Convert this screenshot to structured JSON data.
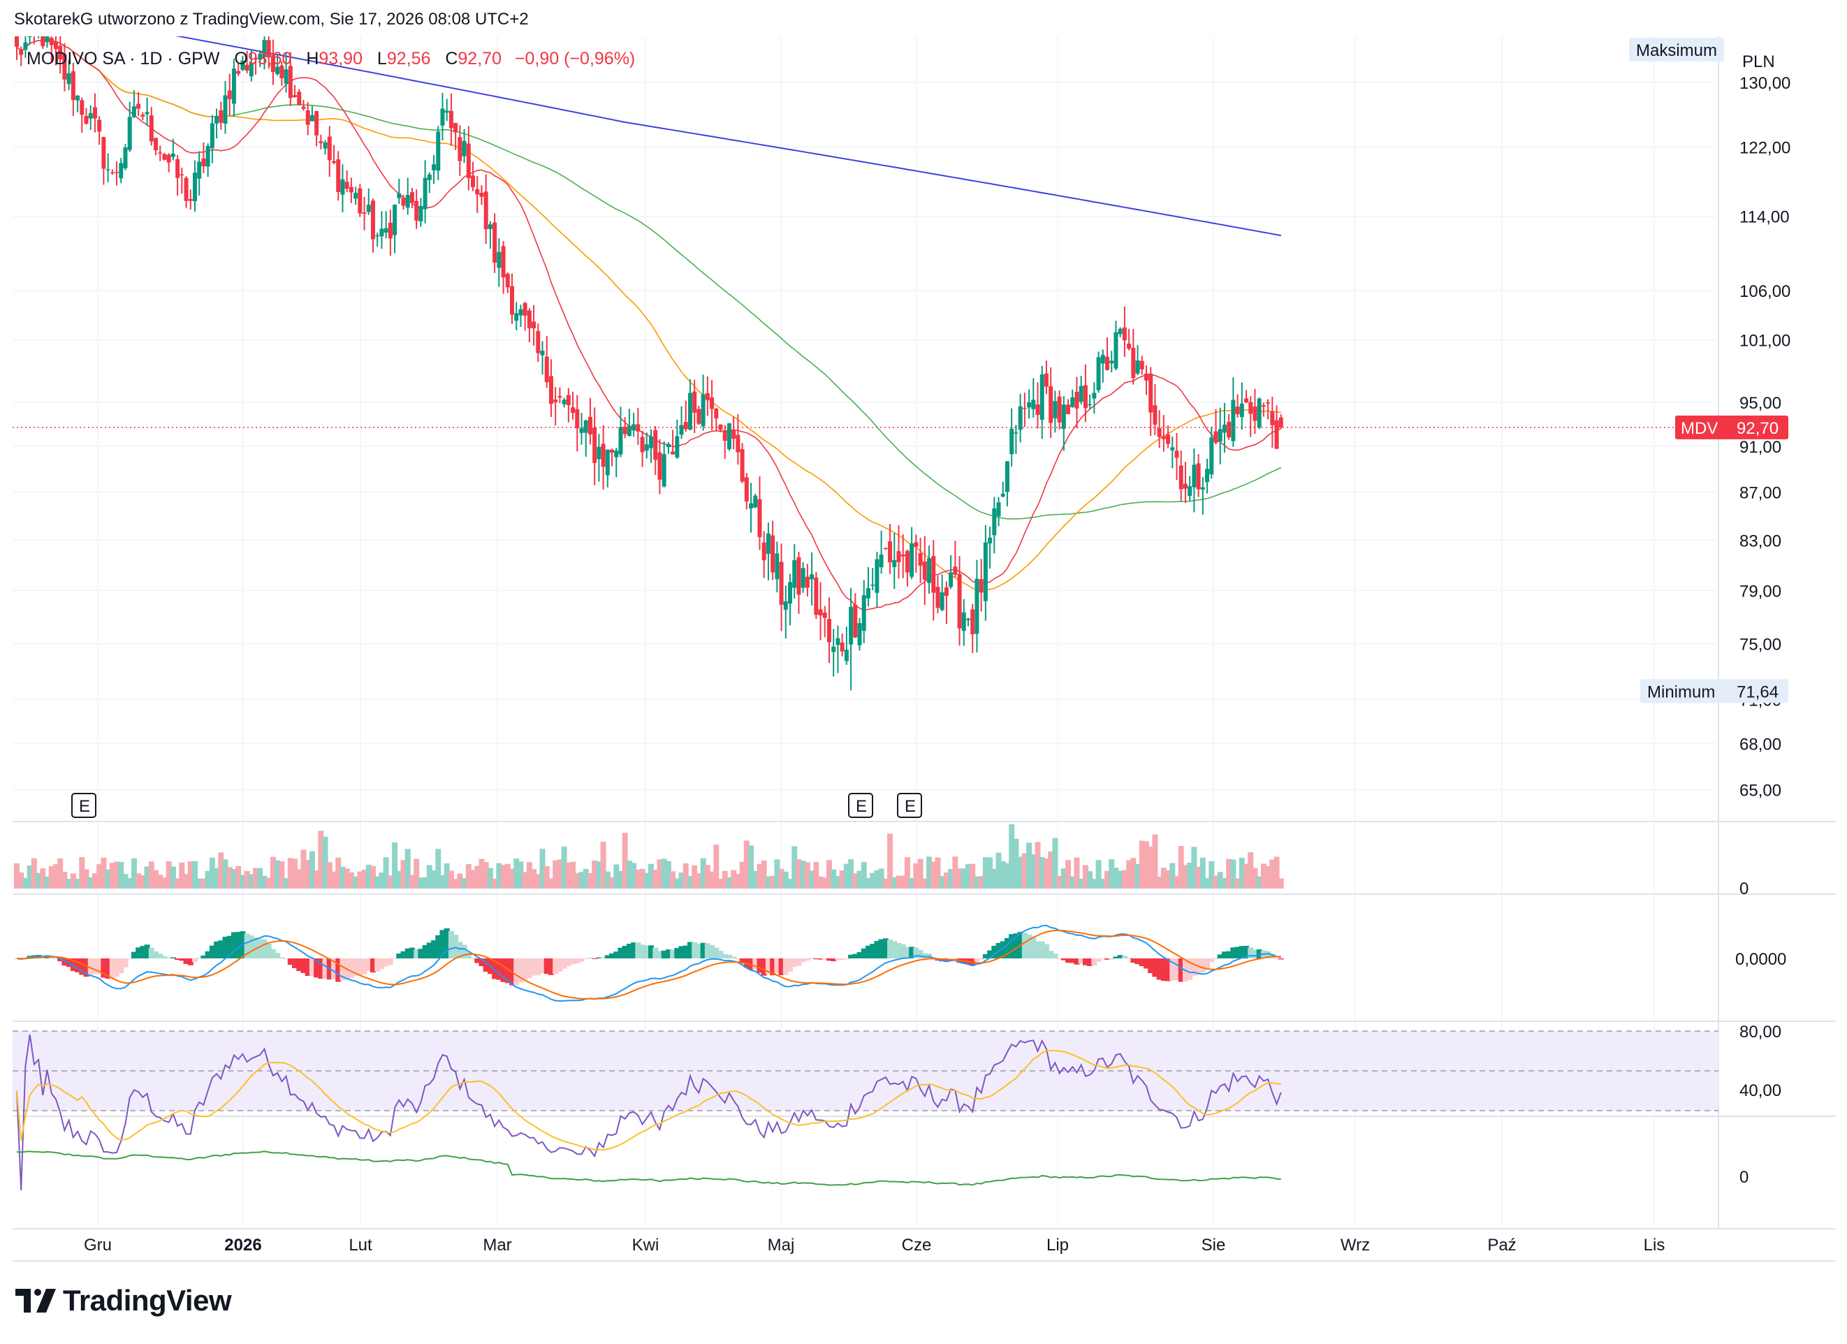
{
  "header": {
    "attribution": "SkotarekG utworzono z TradingView.com, Sie 17, 2026 08:08 UTC+2",
    "symbol_line": "MODIVO SA · 1D · GPW",
    "open_label": "O",
    "open": "93,60",
    "high_label": "H",
    "high": "93,90",
    "low_label": "L",
    "low": "92,56",
    "close_label": "C",
    "close": "92,70",
    "change": "−0,90 (−0,96%)"
  },
  "price_scale": {
    "currency": "PLN",
    "ticks": [
      "130,00",
      "122,00",
      "114,00",
      "106,00",
      "101,00",
      "95,00",
      "91,00",
      "87,00",
      "83,00",
      "79,00",
      "75,00",
      "71,00",
      "68,00",
      "65,00"
    ],
    "max_label": "Maksimum",
    "min_label": "Minimum",
    "min_value": "71,64",
    "last_symbol": "MDV",
    "last_value": "92,70"
  },
  "volume_scale": {
    "ticks": [
      "0"
    ]
  },
  "macd_scale": {
    "ticks": [
      "0,0000"
    ]
  },
  "rsi_scale": {
    "ticks": [
      "80,00",
      "40,00"
    ]
  },
  "lower_scale": {
    "ticks": [
      "0"
    ]
  },
  "time_axis": [
    "Gru",
    "2026",
    "Lut",
    "Mar",
    "Kwi",
    "Maj",
    "Cze",
    "Lip",
    "Sie",
    "Wrz",
    "Paź",
    "Lis"
  ],
  "earnings_markers": [
    "E",
    "E",
    "E"
  ],
  "colors": {
    "up": "#089981",
    "down": "#f23645",
    "ma_fast": "#f23645",
    "ma_mid": "#ff9800",
    "ma_slow": "#4caf50",
    "ma_long": "#3f3fe0",
    "rsi": "#7e57c2",
    "macd": "#2196f3",
    "signal": "#ff6d00"
  },
  "footer": {
    "brand": "TradingView"
  },
  "chart_data": {
    "type": "candlestick",
    "symbol": "MDV",
    "price_range": [
      63,
      136
    ],
    "anchors": [
      [
        0,
        134
      ],
      [
        6,
        136
      ],
      [
        12,
        130
      ],
      [
        18,
        124
      ],
      [
        22,
        118
      ],
      [
        28,
        127
      ],
      [
        34,
        121
      ],
      [
        40,
        116
      ],
      [
        44,
        122
      ],
      [
        50,
        131
      ],
      [
        56,
        134
      ],
      [
        60,
        133
      ],
      [
        66,
        127
      ],
      [
        72,
        120
      ],
      [
        78,
        116
      ],
      [
        84,
        111
      ],
      [
        88,
        116
      ],
      [
        93,
        114
      ],
      [
        98,
        126
      ],
      [
        104,
        120
      ],
      [
        110,
        110
      ],
      [
        118,
        101
      ],
      [
        124,
        96
      ],
      [
        130,
        92
      ],
      [
        136,
        90
      ],
      [
        142,
        94
      ],
      [
        148,
        88
      ],
      [
        154,
        94
      ],
      [
        160,
        96
      ],
      [
        164,
        92
      ],
      [
        170,
        85
      ],
      [
        176,
        79
      ],
      [
        182,
        80
      ],
      [
        188,
        74
      ],
      [
        194,
        78
      ],
      [
        200,
        82
      ],
      [
        206,
        81
      ],
      [
        214,
        79
      ],
      [
        220,
        77
      ],
      [
        226,
        85
      ],
      [
        230,
        93
      ],
      [
        236,
        96
      ],
      [
        242,
        93
      ],
      [
        248,
        97
      ],
      [
        254,
        101
      ],
      [
        260,
        96
      ],
      [
        266,
        91
      ],
      [
        270,
        87
      ],
      [
        274,
        90
      ],
      [
        280,
        94
      ],
      [
        286,
        95
      ],
      [
        291,
        92
      ]
    ],
    "earnings_bar_index": [
      16,
      192,
      204
    ],
    "minimum": 71.64,
    "last": 92.7
  }
}
